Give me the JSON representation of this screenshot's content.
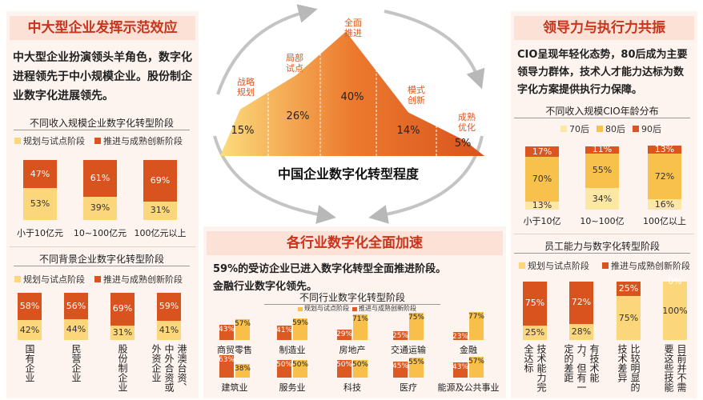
{
  "left_panel": {
    "title": "中大型企业发挥示范效应",
    "paragraph": "中大型企业扮演领头羊角色，数字化进程领先于中小规模企业。股份制企业数字化进展领先。"
  },
  "center_diagram": {
    "title": "中国企业数字化转型程度",
    "stages": [
      "战略规划",
      "局部试点",
      "全面推进",
      "模式创新",
      "成熟优化"
    ],
    "values": [
      15,
      26,
      40,
      14,
      5
    ],
    "value_labels": [
      "15%",
      "26%",
      "40%",
      "14%",
      "5%"
    ],
    "ylim": [
      0,
      45
    ]
  },
  "center_panel": {
    "title": "各行业数字化全面加速",
    "paragraph": [
      "59%",
      "的受访企业已进入数字化转型全面推进阶段。",
      "金融行业数字化领先。"
    ]
  },
  "right_panel": {
    "title": "领导力与执行力共振",
    "paragraph": "CIO呈现年轻化态势，80后成为主要领导力群体，技术人才能力达标为数字化方案提供执行力保障。"
  },
  "chart_data": [
    {
      "type": "stacked_bar",
      "title": "不同收入规模企业数字化转型阶段",
      "categories": [
        "小于10亿元",
        "10~100亿元",
        "100亿元以上"
      ],
      "ylim": [
        0,
        100
      ],
      "series": [
        {
          "name": "规划与试点阶段",
          "color": "#fbd67a",
          "values": [
            53,
            39,
            31
          ],
          "value_labels": [
            "53%",
            "39%",
            "31%"
          ]
        },
        {
          "name": "推进与成熟创新阶段",
          "color": "#d9531e",
          "values": [
            47,
            61,
            69
          ],
          "value_labels": [
            "47%",
            "61%",
            "69%"
          ]
        }
      ]
    },
    {
      "type": "stacked_bar",
      "title": "不同背景企业数字化转型阶段",
      "categories": [
        "国有企业",
        "民营企业",
        "股份制企业",
        "港澳台资、中外合资或外资企业"
      ],
      "ylim": [
        0,
        100
      ],
      "series": [
        {
          "name": "规划与试点阶段",
          "color": "#fbd67a",
          "values": [
            42,
            44,
            31,
            41
          ],
          "value_labels": [
            "42%",
            "44%",
            "31%",
            "41%"
          ]
        },
        {
          "name": "推进与成熟创新阶段",
          "color": "#d9531e",
          "values": [
            58,
            56,
            69,
            59
          ],
          "value_labels": [
            "58%",
            "56%",
            "69%",
            "59%"
          ]
        }
      ]
    },
    {
      "type": "grouped_bar",
      "title": "不同行业数字化转型阶段",
      "categories": [
        "商贸零售",
        "制造业",
        "房地产",
        "交通运输",
        "金融",
        "建筑业",
        "服务业",
        "科技",
        "医疗",
        "能源及公共事业"
      ],
      "ylim": [
        0,
        100
      ],
      "series": [
        {
          "name": "规划与试点阶段",
          "color": "#f8c04a",
          "values": [
            57,
            59,
            71,
            75,
            77,
            38,
            50,
            50,
            55,
            57
          ],
          "value_labels": [
            "57%",
            "59%",
            "71%",
            "75%",
            "77%",
            "38%",
            "50%",
            "50%",
            "55%",
            "57%"
          ]
        },
        {
          "name": "推进与成熟创新阶段",
          "color": "#dc5a22",
          "values": [
            43,
            41,
            29,
            25,
            23,
            63,
            50,
            50,
            45,
            43
          ],
          "value_labels": [
            "43%",
            "41%",
            "29%",
            "25%",
            "23%",
            "63%",
            "50%",
            "50%",
            "45%",
            "43%"
          ]
        }
      ]
    },
    {
      "type": "stacked_bar",
      "title": "不同收入规模CIO年龄分布",
      "categories": [
        "小于10亿",
        "10~100亿",
        "100亿以上"
      ],
      "ylim": [
        0,
        100
      ],
      "series": [
        {
          "name": "70后",
          "color": "#fde7a4",
          "values": [
            13,
            34,
            16
          ],
          "value_labels": [
            "13%",
            "34%",
            "16%"
          ]
        },
        {
          "name": "80后",
          "color": "#f8c14c",
          "values": [
            70,
            55,
            72
          ],
          "value_labels": [
            "70%",
            "55%",
            "72%"
          ]
        },
        {
          "name": "90后",
          "color": "#dc5520",
          "values": [
            17,
            11,
            13
          ],
          "value_labels": [
            "17%",
            "11%",
            "13%"
          ]
        }
      ]
    },
    {
      "type": "stacked_bar",
      "title": "员工能力与数字化转型阶段",
      "categories": [
        "技术能力完全达标",
        "有技术能力，但有一定的差距",
        "比较明显的技术差异",
        "目前并不需要这些技能"
      ],
      "ylim": [
        0,
        100
      ],
      "series": [
        {
          "name": "规划与试点阶段",
          "color": "#fbd67a",
          "values": [
            25,
            28,
            75,
            100
          ],
          "value_labels": [
            "25%",
            "28%",
            "75%",
            "100%"
          ]
        },
        {
          "name": "推进与成熟创新阶段",
          "color": "#d9531e",
          "values": [
            75,
            72,
            25,
            0
          ],
          "value_labels": [
            "75%",
            "72%",
            "25%",
            "0%"
          ]
        }
      ]
    }
  ]
}
